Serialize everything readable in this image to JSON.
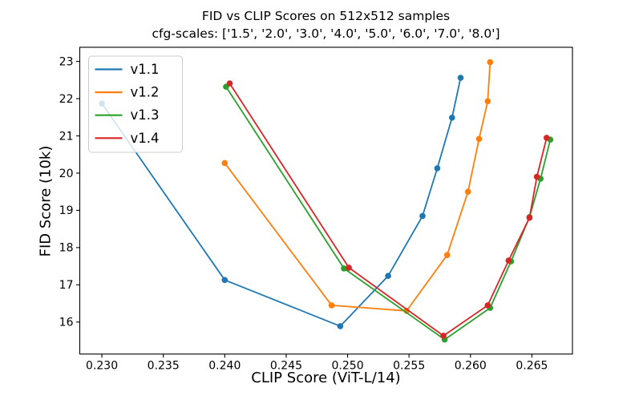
{
  "chart_data": {
    "type": "line",
    "title": "FID vs CLIP Scores on 512x512 samples",
    "subtitle": "cfg-scales: ['1.5', '2.0', '3.0', '4.0', '5.0', '6.0', '7.0', '8.0']",
    "xlabel": "CLIP Score (ViT-L/14)",
    "ylabel": "FID Score (10k)",
    "xlim": [
      0.2282,
      0.2683
    ],
    "ylim": [
      15.14,
      23.38
    ],
    "xticks": [
      0.23,
      0.235,
      0.24,
      0.245,
      0.25,
      0.255,
      0.26,
      0.265
    ],
    "xtick_labels": [
      "0.230",
      "0.235",
      "0.240",
      "0.245",
      "0.250",
      "0.255",
      "0.260",
      "0.265"
    ],
    "yticks": [
      16,
      17,
      18,
      19,
      20,
      21,
      22,
      23
    ],
    "ytick_labels": [
      "16",
      "17",
      "18",
      "19",
      "20",
      "21",
      "22",
      "23"
    ],
    "grid": false,
    "marker": "o",
    "legend": {
      "position": "upper left",
      "entries": [
        "v1.1",
        "v1.2",
        "v1.3",
        "v1.4"
      ]
    },
    "cfg_scales": [
      "1.5",
      "2.0",
      "3.0",
      "4.0",
      "5.0",
      "6.0",
      "7.0",
      "8.0"
    ],
    "series": [
      {
        "name": "v1.1",
        "color": "#1f77b4",
        "x": [
          0.23,
          0.24,
          0.2494,
          0.2533,
          0.2561,
          0.2573,
          0.2585,
          0.2592
        ],
        "y": [
          21.87,
          17.13,
          15.89,
          17.24,
          18.85,
          20.13,
          21.49,
          22.56
        ]
      },
      {
        "name": "v1.2",
        "color": "#ff7f0e",
        "x": [
          0.24,
          0.2487,
          0.2548,
          0.2581,
          0.2598,
          0.2607,
          0.2614,
          0.2616
        ],
        "y": [
          20.27,
          16.45,
          16.3,
          17.8,
          19.5,
          20.92,
          21.93,
          22.98
        ]
      },
      {
        "name": "v1.3",
        "color": "#2ca02c",
        "x": [
          0.2401,
          0.2497,
          0.2579,
          0.2616,
          0.2633,
          0.2648,
          0.2657,
          0.2665
        ],
        "y": [
          22.32,
          17.44,
          15.53,
          16.38,
          17.63,
          18.82,
          19.85,
          20.9
        ]
      },
      {
        "name": "v1.4",
        "color": "#d62728",
        "x": [
          0.2404,
          0.2501,
          0.2578,
          0.2614,
          0.2631,
          0.2648,
          0.2654,
          0.2662
        ],
        "y": [
          22.41,
          17.46,
          15.63,
          16.45,
          17.65,
          18.8,
          19.9,
          20.95
        ]
      }
    ],
    "style": {
      "spine_color": "#000000",
      "tick_label_color": "#000000",
      "legend_border_color": "#cccccc",
      "background": "#ffffff"
    }
  }
}
